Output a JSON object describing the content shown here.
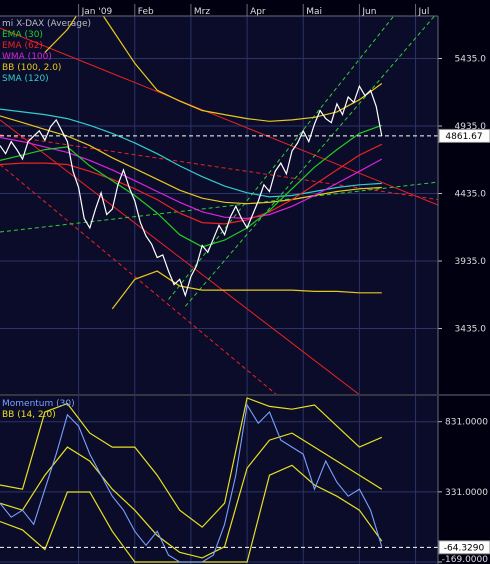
{
  "chart_data": [
    {
      "type": "line",
      "title": "",
      "instrument_label": "mi X-DAX (Average)",
      "months": [
        "Jan '09",
        "Feb",
        "Mrz",
        "Apr",
        "Mai",
        "Jun",
        "Jul"
      ],
      "y_ticks": [
        5435.0,
        4935.0,
        4435.0,
        3935.0,
        3435.0
      ],
      "y_tick_labels": [
        "5435.0",
        "4935.0",
        "4435.0",
        "3935.0",
        "3435.0"
      ],
      "ylim": [
        2950,
        5750
      ],
      "xlim": [
        -1.4,
        6.4
      ],
      "last_value": 4861.67,
      "last_value_label": "4861.67",
      "legend": [
        {
          "label": "EMA (30)",
          "color": "#22cc22"
        },
        {
          "label": "EMA (62)",
          "color": "#ee2222"
        },
        {
          "label": "WMA (100)",
          "color": "#dd22dd"
        },
        {
          "label": "BB (100, 2.0)",
          "color": "#e8c81c"
        },
        {
          "label": "SMA (120)",
          "color": "#33cccc"
        }
      ],
      "price": {
        "color": "#ffffff",
        "x": [
          -1.4,
          -1.3,
          -1.2,
          -1.1,
          -1.0,
          -0.9,
          -0.8,
          -0.7,
          -0.6,
          -0.5,
          -0.4,
          -0.3,
          -0.2,
          -0.1,
          0.0,
          0.1,
          0.2,
          0.3,
          0.4,
          0.5,
          0.6,
          0.7,
          0.8,
          0.9,
          1.0,
          1.1,
          1.2,
          1.3,
          1.4,
          1.5,
          1.6,
          1.7,
          1.8,
          1.9,
          2.0,
          2.1,
          2.2,
          2.3,
          2.4,
          2.5,
          2.6,
          2.7,
          2.8,
          2.9,
          3.0,
          3.1,
          3.2,
          3.3,
          3.4,
          3.5,
          3.6,
          3.7,
          3.8,
          3.9,
          4.0,
          4.1,
          4.2,
          4.3,
          4.4,
          4.5,
          4.6,
          4.7,
          4.8,
          4.9,
          5.0,
          5.1,
          5.2,
          5.3,
          5.4
        ],
        "y": [
          4790,
          4730,
          4820,
          4760,
          4690,
          4820,
          4860,
          4900,
          4830,
          4930,
          4980,
          4900,
          4820,
          4600,
          4480,
          4250,
          4180,
          4320,
          4440,
          4280,
          4320,
          4500,
          4610,
          4480,
          4380,
          4220,
          4120,
          4060,
          3960,
          3980,
          3860,
          3760,
          3800,
          3680,
          3820,
          3900,
          4050,
          4000,
          4100,
          4200,
          4130,
          4260,
          4340,
          4250,
          4180,
          4280,
          4380,
          4500,
          4450,
          4600,
          4660,
          4580,
          4750,
          4810,
          4900,
          4820,
          4950,
          5050,
          4990,
          4960,
          5100,
          5020,
          5150,
          5110,
          5230,
          5160,
          5200,
          5080,
          4860
        ]
      },
      "ema30": {
        "color": "#22cc22",
        "x": [
          -1.4,
          -1.0,
          -0.6,
          -0.2,
          0.2,
          0.6,
          1.0,
          1.4,
          1.8,
          2.2,
          2.6,
          3.0,
          3.4,
          3.8,
          4.2,
          4.6,
          5.0,
          5.4
        ],
        "y": [
          4680,
          4720,
          4760,
          4780,
          4640,
          4530,
          4420,
          4290,
          4130,
          4040,
          4090,
          4180,
          4310,
          4470,
          4630,
          4760,
          4880,
          4940
        ]
      },
      "ema62": {
        "color": "#ee2222",
        "x": [
          -1.4,
          -1.0,
          -0.6,
          -0.2,
          0.2,
          0.6,
          1.0,
          1.4,
          1.8,
          2.2,
          2.6,
          3.0,
          3.4,
          3.8,
          4.2,
          4.6,
          5.0,
          5.4
        ],
        "y": [
          4650,
          4660,
          4660,
          4650,
          4600,
          4540,
          4470,
          4390,
          4290,
          4220,
          4210,
          4240,
          4300,
          4390,
          4500,
          4610,
          4720,
          4800
        ]
      },
      "wma100": {
        "color": "#dd22dd",
        "x": [
          -1.4,
          -1.0,
          -0.6,
          -0.2,
          0.2,
          0.6,
          1.0,
          1.4,
          1.8,
          2.2,
          2.6,
          3.0,
          3.4,
          3.8,
          4.2,
          4.6,
          5.0,
          5.4
        ],
        "y": [
          4850,
          4820,
          4780,
          4740,
          4680,
          4610,
          4530,
          4450,
          4370,
          4300,
          4260,
          4250,
          4280,
          4340,
          4420,
          4510,
          4600,
          4690
        ]
      },
      "sma120": {
        "color": "#33cccc",
        "x": [
          -1.4,
          -1.0,
          -0.6,
          -0.2,
          0.2,
          0.6,
          1.0,
          1.4,
          1.8,
          2.2,
          2.6,
          3.0,
          3.4,
          3.8,
          4.2,
          4.6,
          5.0,
          5.4
        ],
        "y": [
          5060,
          5040,
          5020,
          4990,
          4940,
          4880,
          4810,
          4730,
          4640,
          4560,
          4490,
          4440,
          4410,
          4420,
          4450,
          4480,
          4500,
          4510
        ]
      },
      "bb_upper": {
        "color": "#e8c81c",
        "x": [
          -0.6,
          -0.2,
          0.2,
          0.6,
          1.0,
          1.4,
          1.8,
          2.2,
          2.6,
          3.0,
          3.4,
          3.8,
          4.2,
          4.6,
          5.0,
          5.4
        ],
        "y": [
          5480,
          5650,
          5900,
          5650,
          5400,
          5200,
          5120,
          5050,
          5020,
          4990,
          4970,
          4980,
          5000,
          5040,
          5130,
          5250
        ]
      },
      "bb_middle": {
        "color": "#e8c81c",
        "x": [
          -1.4,
          -1.0,
          -0.6,
          -0.2,
          0.2,
          0.6,
          1.0,
          1.4,
          1.8,
          2.2,
          2.6,
          3.0,
          3.4,
          3.8,
          4.2,
          4.6,
          5.0,
          5.4
        ],
        "y": [
          5010,
          4960,
          4910,
          4860,
          4790,
          4700,
          4620,
          4540,
          4460,
          4400,
          4370,
          4360,
          4370,
          4390,
          4420,
          4450,
          4470,
          4480
        ]
      },
      "bb_lower": {
        "color": "#e8c81c",
        "x": [
          0.6,
          1.0,
          1.4,
          1.8,
          2.2,
          2.6,
          3.0,
          3.4,
          3.8,
          4.2,
          4.6,
          5.0,
          5.4
        ],
        "y": [
          3580,
          3800,
          3860,
          3750,
          3720,
          3720,
          3720,
          3720,
          3720,
          3710,
          3710,
          3700,
          3700
        ]
      },
      "trendlines": [
        {
          "color": "#ee2222",
          "style": "solid",
          "x": [
            -1.4,
            6.4
          ],
          "y": [
            5660,
            4350
          ]
        },
        {
          "color": "#ee2222",
          "style": "solid",
          "x": [
            -1.4,
            6.4
          ],
          "y": [
            4980,
            2500
          ]
        },
        {
          "color": "#ee2222",
          "style": "dashed",
          "x": [
            -1.4,
            6.4
          ],
          "y": [
            4870,
            4390
          ]
        },
        {
          "color": "#ee2222",
          "style": "dashed",
          "x": [
            -1.4,
            6.4
          ],
          "y": [
            4650,
            1950
          ]
        },
        {
          "color": "#33cc33",
          "style": "dashed",
          "x": [
            -1.4,
            6.4
          ],
          "y": [
            4150,
            4520
          ]
        },
        {
          "color": "#33cc33",
          "style": "dashed",
          "x": [
            1.6,
            5.9
          ],
          "y": [
            3650,
            5900
          ]
        },
        {
          "color": "#33cc33",
          "style": "dashed",
          "x": [
            1.9,
            6.4
          ],
          "y": [
            3600,
            5780
          ]
        }
      ]
    },
    {
      "type": "line",
      "title": "",
      "legend": [
        {
          "label": "Momentum (30)",
          "color": "#7aa0ff"
        },
        {
          "label": "BB (14, 2.0)",
          "color": "#e8e020"
        }
      ],
      "y_ticks": [
        831.0,
        331.0,
        -169.0
      ],
      "y_tick_labels": [
        "831.0000",
        "331.0000",
        "-169.0000"
      ],
      "ylim": [
        -169,
        1000
      ],
      "xlim": [
        -1.4,
        6.4
      ],
      "last_value": -64.329,
      "last_value_label": "-64.3290",
      "momentum": {
        "color": "#7aa0ff",
        "x": [
          -1.4,
          -1.2,
          -1.0,
          -0.8,
          -0.6,
          -0.4,
          -0.2,
          0.0,
          0.2,
          0.4,
          0.6,
          0.8,
          1.0,
          1.2,
          1.4,
          1.6,
          1.8,
          2.0,
          2.2,
          2.4,
          2.6,
          2.8,
          3.0,
          3.2,
          3.4,
          3.6,
          3.8,
          4.0,
          4.2,
          4.4,
          4.6,
          4.8,
          5.0,
          5.2,
          5.4
        ],
        "y": [
          250,
          150,
          200,
          100,
          350,
          600,
          880,
          800,
          600,
          450,
          300,
          200,
          50,
          -50,
          50,
          -120,
          -169,
          -169,
          -169,
          -120,
          100,
          450,
          950,
          820,
          900,
          700,
          650,
          600,
          350,
          550,
          400,
          300,
          350,
          200,
          -60
        ]
      },
      "bb_upper": {
        "color": "#e8e020",
        "x": [
          -1.4,
          -1.0,
          -0.6,
          -0.2,
          0.2,
          0.6,
          1.0,
          1.4,
          1.8,
          2.2,
          2.6,
          3.0,
          3.4,
          3.8,
          4.2,
          4.6,
          5.0,
          5.4
        ],
        "y": [
          380,
          350,
          900,
          960,
          750,
          650,
          650,
          450,
          200,
          80,
          250,
          1000,
          940,
          920,
          950,
          800,
          650,
          720
        ]
      },
      "bb_middle": {
        "color": "#e8e020",
        "x": [
          -1.4,
          -1.0,
          -0.6,
          -0.2,
          0.2,
          0.6,
          1.0,
          1.4,
          1.8,
          2.2,
          2.6,
          3.0,
          3.4,
          3.8,
          4.2,
          4.6,
          5.0,
          5.4
        ],
        "y": [
          250,
          200,
          450,
          650,
          550,
          350,
          200,
          20,
          -100,
          -140,
          -60,
          500,
          700,
          750,
          650,
          550,
          450,
          350
        ]
      },
      "bb_lower": {
        "color": "#e8e020",
        "x": [
          -1.4,
          -1.0,
          -0.6,
          -0.2,
          0.2,
          0.6,
          1.0,
          1.4,
          1.8,
          2.2,
          2.6,
          3.0,
          3.4,
          3.8,
          4.2,
          4.6,
          5.0,
          5.4
        ],
        "y": [
          120,
          60,
          -80,
          330,
          330,
          50,
          -169,
          -169,
          -169,
          -169,
          -169,
          -169,
          450,
          520,
          380,
          300,
          200,
          -20
        ]
      }
    }
  ]
}
